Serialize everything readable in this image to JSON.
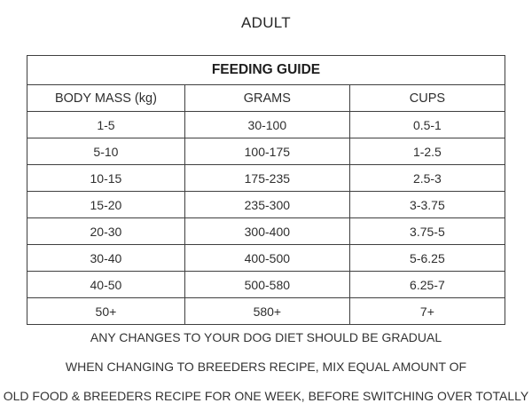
{
  "page": {
    "title": "ADULT"
  },
  "table": {
    "title": "FEEDING GUIDE",
    "columns": [
      "BODY MASS (kg)",
      "GRAMS",
      "CUPS"
    ],
    "rows": [
      [
        "1-5",
        "30-100",
        "0.5-1"
      ],
      [
        "5-10",
        "100-175",
        "1-2.5"
      ],
      [
        "10-15",
        "175-235",
        "2.5-3"
      ],
      [
        "15-20",
        "235-300",
        "3-3.75"
      ],
      [
        "20-30",
        "300-400",
        "3.75-5"
      ],
      [
        "30-40",
        "400-500",
        "5-6.25"
      ],
      [
        "40-50",
        "500-580",
        "6.25-7"
      ],
      [
        "50+",
        "580+",
        "7+"
      ]
    ]
  },
  "notes": {
    "line1": "ANY CHANGES TO YOUR DOG DIET SHOULD BE GRADUAL",
    "line2": "WHEN CHANGING TO BREEDERS RECIPE, MIX EQUAL AMOUNT OF",
    "line3": "OLD FOOD & BREEDERS RECIPE FOR ONE WEEK, BEFORE SWITCHING OVER TOTALLY"
  },
  "colors": {
    "border": "#3f3f3f",
    "text": "#2e2e2e",
    "background": "#ffffff"
  }
}
